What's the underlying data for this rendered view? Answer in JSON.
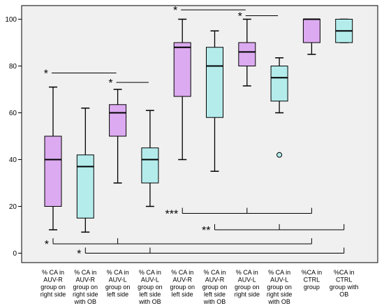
{
  "chart_data": {
    "type": "box",
    "title": "",
    "xlabel": "",
    "ylabel": "",
    "ylim": [
      -5,
      105
    ],
    "yticks": [
      0,
      20,
      40,
      60,
      80,
      100
    ],
    "grid": false,
    "colors": {
      "purple": "#dcaaf0",
      "cyan": "#b4ecec",
      "frame": "#000000",
      "plot_bg": "#f0f0f0"
    },
    "categories": [
      {
        "lines": [
          "% CA in",
          "AUV-R",
          "group on",
          "right side"
        ],
        "color": "purple",
        "box": {
          "whisker_low": 10,
          "q1": 20,
          "median": 40,
          "q3": 50,
          "whisker_high": 71
        },
        "outliers": []
      },
      {
        "lines": [
          "% CA in",
          "AUV-R",
          "group on",
          "right side",
          "with OB"
        ],
        "color": "cyan",
        "box": {
          "whisker_low": 9,
          "q1": 15,
          "median": 37,
          "q3": 42,
          "whisker_high": 62
        },
        "outliers": []
      },
      {
        "lines": [
          "% CA in",
          "AUV-L",
          "group on",
          "left side"
        ],
        "color": "purple",
        "box": {
          "whisker_low": 30,
          "q1": 50,
          "median": 60,
          "q3": 63.5,
          "whisker_high": 70
        },
        "outliers": []
      },
      {
        "lines": [
          "% CA in",
          "AUV-L",
          "group on",
          "left side",
          "with OB"
        ],
        "color": "cyan",
        "box": {
          "whisker_low": 20,
          "q1": 30,
          "median": 40,
          "q3": 45,
          "whisker_high": 61
        },
        "outliers": []
      },
      {
        "lines": [
          "% CA in",
          "AUV-R",
          "group on",
          "left side"
        ],
        "color": "purple",
        "box": {
          "whisker_low": 40,
          "q1": 67,
          "median": 88,
          "q3": 90,
          "whisker_high": 100
        },
        "outliers": []
      },
      {
        "lines": [
          "% CA in",
          "AUV-R",
          "group on",
          "left side",
          "with OB"
        ],
        "color": "cyan",
        "box": {
          "whisker_low": 35,
          "q1": 58,
          "median": 80,
          "q3": 88,
          "whisker_high": 95
        },
        "outliers": []
      },
      {
        "lines": [
          "% CA in",
          "AUV-L",
          "group on",
          "right side"
        ],
        "color": "purple",
        "box": {
          "whisker_low": 71.5,
          "q1": 80,
          "median": 86,
          "q3": 90,
          "whisker_high": 100
        },
        "outliers": []
      },
      {
        "lines": [
          "% CA in",
          "AUV-L",
          "group on",
          "right side",
          "with OB"
        ],
        "color": "cyan",
        "box": {
          "whisker_low": 60,
          "q1": 65,
          "median": 75,
          "q3": 80,
          "whisker_high": 83.5
        },
        "outliers": [
          42
        ]
      },
      {
        "lines": [
          "%CA in",
          "CTRL",
          "group"
        ],
        "color": "purple",
        "box": {
          "whisker_low": 85,
          "q1": 90,
          "median": 100,
          "q3": 100,
          "whisker_high": 100
        },
        "outliers": []
      },
      {
        "lines": [
          "%CA in",
          "CTRL",
          "group with",
          "OB"
        ],
        "color": "cyan",
        "box": {
          "whisker_low": 90,
          "q1": 90,
          "median": 95,
          "q3": 100,
          "whisker_high": 100
        },
        "outliers": []
      }
    ],
    "significance": [
      {
        "label": "*",
        "type": "bar",
        "between": [
          0,
          2
        ],
        "y": 77
      },
      {
        "label": "*",
        "type": "bar",
        "between": [
          2,
          3
        ],
        "y": 73
      },
      {
        "label": "*",
        "type": "bar",
        "between": [
          4,
          6
        ],
        "y": 104
      },
      {
        "label": "*",
        "type": "bar",
        "between": [
          6,
          7
        ],
        "y": 101.5
      },
      {
        "label": "***",
        "type": "bracket",
        "groups": [
          4,
          6,
          8
        ],
        "y": 17
      },
      {
        "label": "**",
        "type": "bracket",
        "groups": [
          5,
          7,
          9
        ],
        "y": 10
      },
      {
        "label": "*",
        "type": "bracket",
        "groups": [
          0,
          2,
          8
        ],
        "y": 4
      },
      {
        "label": "*",
        "type": "bracket",
        "groups": [
          1,
          3,
          9
        ],
        "y": 0
      }
    ]
  }
}
